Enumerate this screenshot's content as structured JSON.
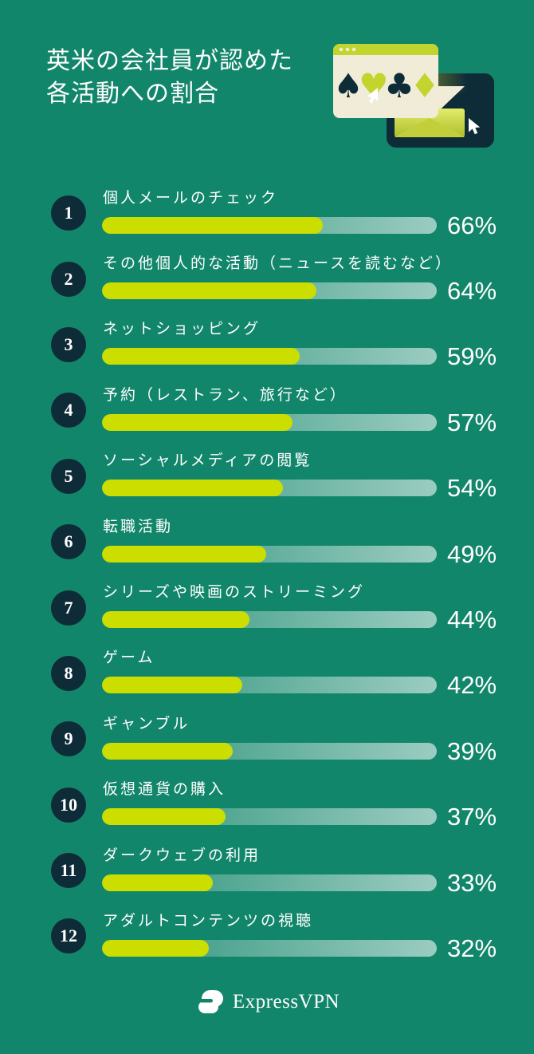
{
  "header": {
    "title_line1": "英米の会社員が認めた",
    "title_line2": "各活動への割合"
  },
  "chart_data": {
    "type": "bar",
    "orientation": "horizontal",
    "title": "英米の会社員が認めた各活動への割合",
    "unit": "%",
    "xlim": [
      0,
      100
    ],
    "grid": false,
    "categories": [
      "個人メールのチェック",
      "その他個人的な活動（ニュースを読むなど）",
      "ネットショッピング",
      "予約（レストラン、旅行など）",
      "ソーシャルメディアの閲覧",
      "転職活動",
      "シリーズや映画のストリーミング",
      "ゲーム",
      "ギャンブル",
      "仮想通貨の購入",
      "ダークウェブの利用",
      "アダルトコンテンツの視聴"
    ],
    "values": [
      66,
      64,
      59,
      57,
      54,
      49,
      44,
      42,
      39,
      37,
      33,
      32
    ],
    "ranks": [
      1,
      2,
      3,
      4,
      5,
      6,
      7,
      8,
      9,
      10,
      11,
      12
    ]
  },
  "rows": [
    {
      "rank": "1",
      "label": "個人メールのチェック",
      "value": 66,
      "percent": "66%"
    },
    {
      "rank": "2",
      "label": "その他個人的な活動（ニュースを読むなど）",
      "value": 64,
      "percent": "64%"
    },
    {
      "rank": "3",
      "label": "ネットショッピング",
      "value": 59,
      "percent": "59%"
    },
    {
      "rank": "4",
      "label": "予約（レストラン、旅行など）",
      "value": 57,
      "percent": "57%"
    },
    {
      "rank": "5",
      "label": "ソーシャルメディアの閲覧",
      "value": 54,
      "percent": "54%"
    },
    {
      "rank": "6",
      "label": "転職活動",
      "value": 49,
      "percent": "49%"
    },
    {
      "rank": "7",
      "label": "シリーズや映画のストリーミング",
      "value": 44,
      "percent": "44%"
    },
    {
      "rank": "8",
      "label": "ゲーム",
      "value": 42,
      "percent": "42%"
    },
    {
      "rank": "9",
      "label": "ギャンブル",
      "value": 39,
      "percent": "39%"
    },
    {
      "rank": "10",
      "label": "仮想通貨の購入",
      "value": 37,
      "percent": "37%"
    },
    {
      "rank": "11",
      "label": "ダークウェブの利用",
      "value": 33,
      "percent": "33%"
    },
    {
      "rank": "12",
      "label": "アダルトコンテンツの視聴",
      "value": 32,
      "percent": "32%"
    }
  ],
  "illustration": {
    "suits": {
      "spade": "♠",
      "heart": "♥",
      "club": "♣",
      "diamond": "♦"
    }
  },
  "footer": {
    "brand": "ExpressVPN"
  },
  "colors": {
    "background": "#12866B",
    "bar_fill": "#CBDE00",
    "navy": "#0E2B38",
    "cream": "#F0ECD8",
    "illus_lime": "#C4D42E",
    "text": "#FFFFFF"
  }
}
